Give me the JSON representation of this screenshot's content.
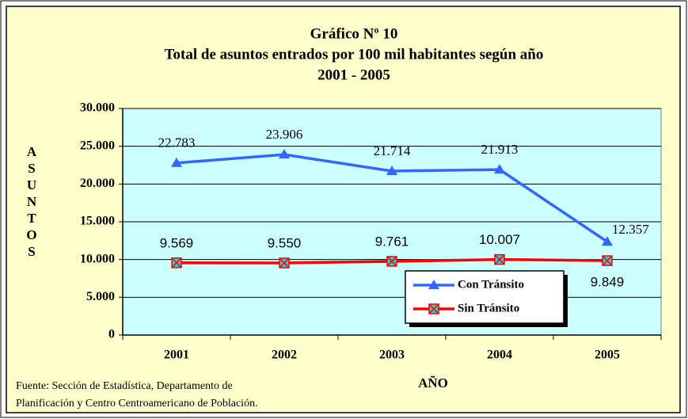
{
  "chart_data": {
    "type": "line",
    "title_lines": [
      "Gráfico Nº 10",
      "Total de asuntos entrados por 100 mil habitantes según año",
      "2001 - 2005"
    ],
    "y_label": "ASUNTOS",
    "x_label": "AÑO",
    "source_lines": [
      "Fuente: Sección de Estadística, Departamento de",
      "Planificación  y Centro Centroamericano de Población."
    ],
    "categories": [
      "2001",
      "2002",
      "2003",
      "2004",
      "2005"
    ],
    "series": [
      {
        "name": "Con Tránsito",
        "color": "#3366ff",
        "marker": "triangle",
        "values": [
          22783,
          23906,
          21714,
          21913,
          12357
        ],
        "value_labels": [
          "22.783",
          "23.906",
          "21.714",
          "21.913",
          "12.357"
        ]
      },
      {
        "name": "Sin Tránsito",
        "color": "#ff0000",
        "marker": "square-x",
        "values": [
          9569,
          9550,
          9761,
          10007,
          9849
        ],
        "value_labels": [
          "9.569",
          "9.550",
          "9.761",
          "10.007",
          "9.849"
        ]
      }
    ],
    "ylim": [
      0,
      30000
    ],
    "yticks": [
      {
        "value": 0,
        "label": "0"
      },
      {
        "value": 5000,
        "label": "5.000"
      },
      {
        "value": 10000,
        "label": "10.000"
      },
      {
        "value": 15000,
        "label": "15.000"
      },
      {
        "value": 20000,
        "label": "20.000"
      },
      {
        "value": 25000,
        "label": "25.000"
      },
      {
        "value": 30000,
        "label": "30.000"
      }
    ],
    "grid": true
  }
}
